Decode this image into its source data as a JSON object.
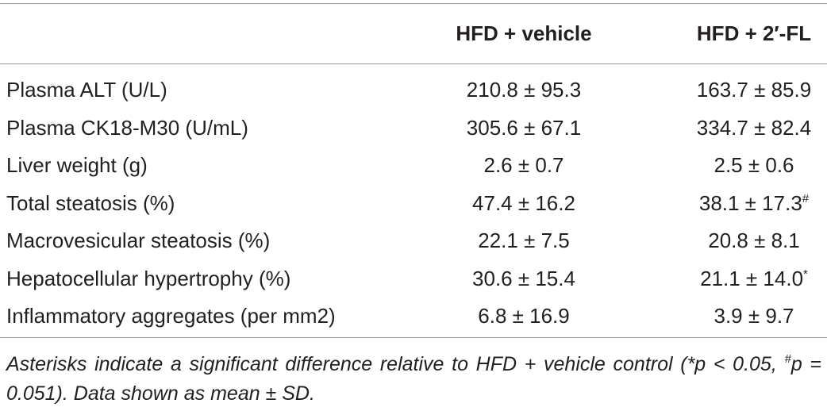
{
  "table": {
    "header": [
      "",
      "HFD + vehicle",
      "HFD + 2′-FL"
    ],
    "rows": [
      [
        "Plasma ALT (U/L)",
        {
          "text": "210.8 ± 95.3"
        },
        {
          "text": "163.7 ± 85.9"
        }
      ],
      [
        "Plasma CK18-M30 (U/mL)",
        {
          "text": "305.6 ± 67.1"
        },
        {
          "text": "334.7 ± 82.4"
        }
      ],
      [
        "Liver weight (g)",
        {
          "text": "2.6 ± 0.7"
        },
        {
          "text": "2.5 ± 0.6"
        }
      ],
      [
        "Total steatosis (%)",
        {
          "text": "47.4 ± 16.2"
        },
        {
          "text": "38.1 ± 17.3",
          "sup": "#"
        }
      ],
      [
        "Macrovesicular steatosis (%)",
        {
          "text": "22.1 ± 7.5"
        },
        {
          "text": "20.8 ± 8.1"
        }
      ],
      [
        "Hepatocellular hypertrophy (%)",
        {
          "text": "30.6 ± 15.4"
        },
        {
          "text": "21.1 ± 14.0",
          "sup": "*"
        }
      ],
      [
        "Inflammatory aggregates (per mm2)",
        {
          "text": "6.8 ± 16.9"
        },
        {
          "text": "3.9 ± 9.7"
        }
      ]
    ],
    "footnote": {
      "before": "Asterisks indicate a significant difference relative to HFD + vehicle control (*p < 0.05, ",
      "sup": "#",
      "after": "p = 0.051). Data shown as mean ± SD."
    }
  }
}
